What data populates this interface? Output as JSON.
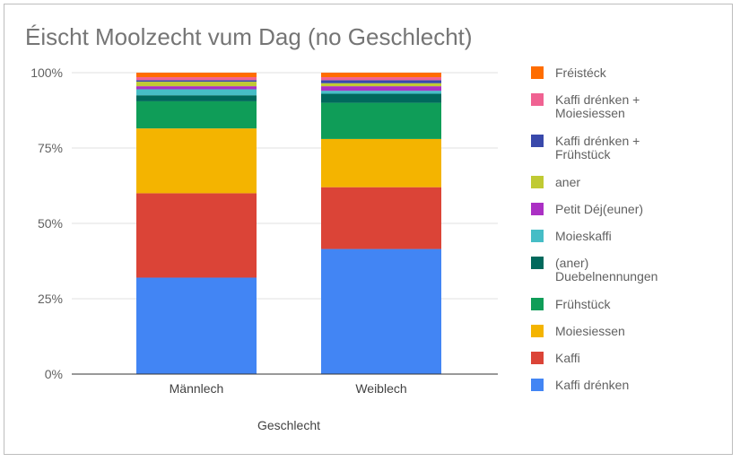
{
  "chart_data": {
    "type": "bar",
    "stacked": true,
    "percent": true,
    "title": "Éischt Moolzecht vum Dag (no Geschlecht)",
    "xlabel": "Geschlecht",
    "ylabel": "",
    "ylim": [
      0,
      100
    ],
    "yticks": [
      "0%",
      "25%",
      "50%",
      "75%",
      "100%"
    ],
    "grid": true,
    "legend_position": "right",
    "categories": [
      "Männlech",
      "Weiblech"
    ],
    "series": [
      {
        "name": "Kaffi drénken",
        "color": "#4285f4",
        "values": [
          32,
          41.5
        ]
      },
      {
        "name": "Kaffi",
        "color": "#db4437",
        "values": [
          28,
          20.5
        ]
      },
      {
        "name": "Moiesiessen",
        "color": "#f4b400",
        "values": [
          21.5,
          16
        ]
      },
      {
        "name": "Frühstück",
        "color": "#0f9d58",
        "values": [
          9,
          12
        ]
      },
      {
        "name": "(aner) Duebelnennungen",
        "color": "#00695c",
        "values": [
          2,
          3
        ]
      },
      {
        "name": "Moieskaffi",
        "color": "#46bdc6",
        "values": [
          2,
          1
        ]
      },
      {
        "name": "Petit Déj(euner)",
        "color": "#ab30c4",
        "values": [
          1,
          1.5
        ]
      },
      {
        "name": "aner",
        "color": "#c0ca33",
        "values": [
          1.5,
          1
        ]
      },
      {
        "name": "Kaffi drénken + Frühstück",
        "color": "#3949ab",
        "values": [
          0.5,
          1
        ]
      },
      {
        "name": "Kaffi drénken + Moiesiessen",
        "color": "#f06292",
        "values": [
          1,
          1
        ]
      },
      {
        "name": "Fréistéck",
        "color": "#ff6d00",
        "values": [
          1.5,
          1.5
        ]
      }
    ]
  }
}
